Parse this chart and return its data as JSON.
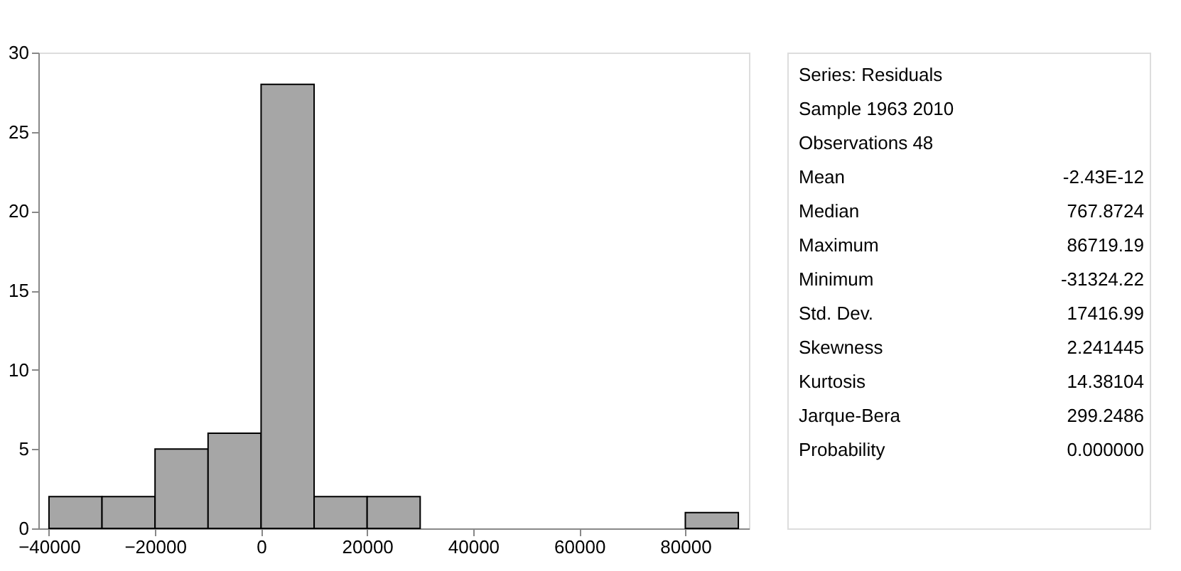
{
  "chart_data": {
    "type": "histogram",
    "bins": [
      -40000,
      -30000,
      -20000,
      -10000,
      0,
      10000,
      20000,
      30000,
      40000,
      50000,
      60000,
      70000,
      80000,
      90000
    ],
    "values": [
      2,
      2,
      5,
      6,
      28,
      2,
      2,
      0,
      0,
      0,
      0,
      0,
      1
    ],
    "color": "#a6a6a6",
    "xlim": [
      -42000,
      92000
    ],
    "xticks": [
      -40000,
      -20000,
      0,
      20000,
      40000,
      60000,
      80000
    ],
    "ylim": [
      0,
      30
    ],
    "yticks": [
      0,
      5,
      10,
      15,
      20,
      25,
      30
    ],
    "grid": false,
    "annotations": [
      "Series: Residuals",
      "Sample 1963 2010",
      "Observations 48",
      "Mean\t-2.43E-12",
      "Median\t767.8724",
      "Maximum\t86719.19",
      "Minimum\t-31324.22",
      "Std. Dev.\t17416.99",
      "Skewness\t2.241445",
      "Kurtosis\t14.38104",
      "Jarque-Bera\t299.2486",
      "Probability\t0.000000"
    ]
  }
}
